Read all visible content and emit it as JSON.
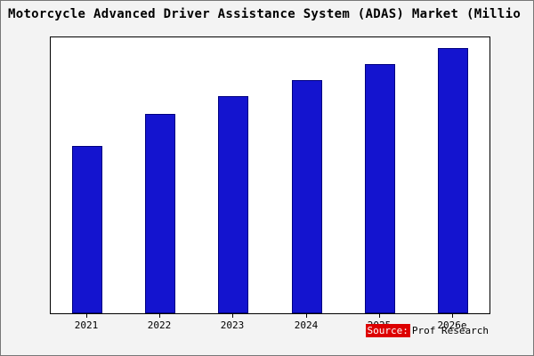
{
  "chart_data": {
    "type": "bar",
    "title": "Motorcycle Advanced Driver Assistance System (ADAS) Market (Millio",
    "categories": [
      "2021",
      "2022",
      "2023",
      "2024",
      "2025",
      "2026e"
    ],
    "values": [
      63,
      75,
      82,
      88,
      94,
      100
    ],
    "ylim": [
      0,
      104
    ],
    "xlabel": "",
    "ylabel": "",
    "grid": false,
    "legend": null,
    "bar_fill": "#1414cf",
    "bar_edge": "#000080",
    "plot_background": "#ffffff",
    "page_background": "#f3f3f3"
  },
  "source": {
    "prefix": "Source:",
    "text": "Prof Research"
  }
}
